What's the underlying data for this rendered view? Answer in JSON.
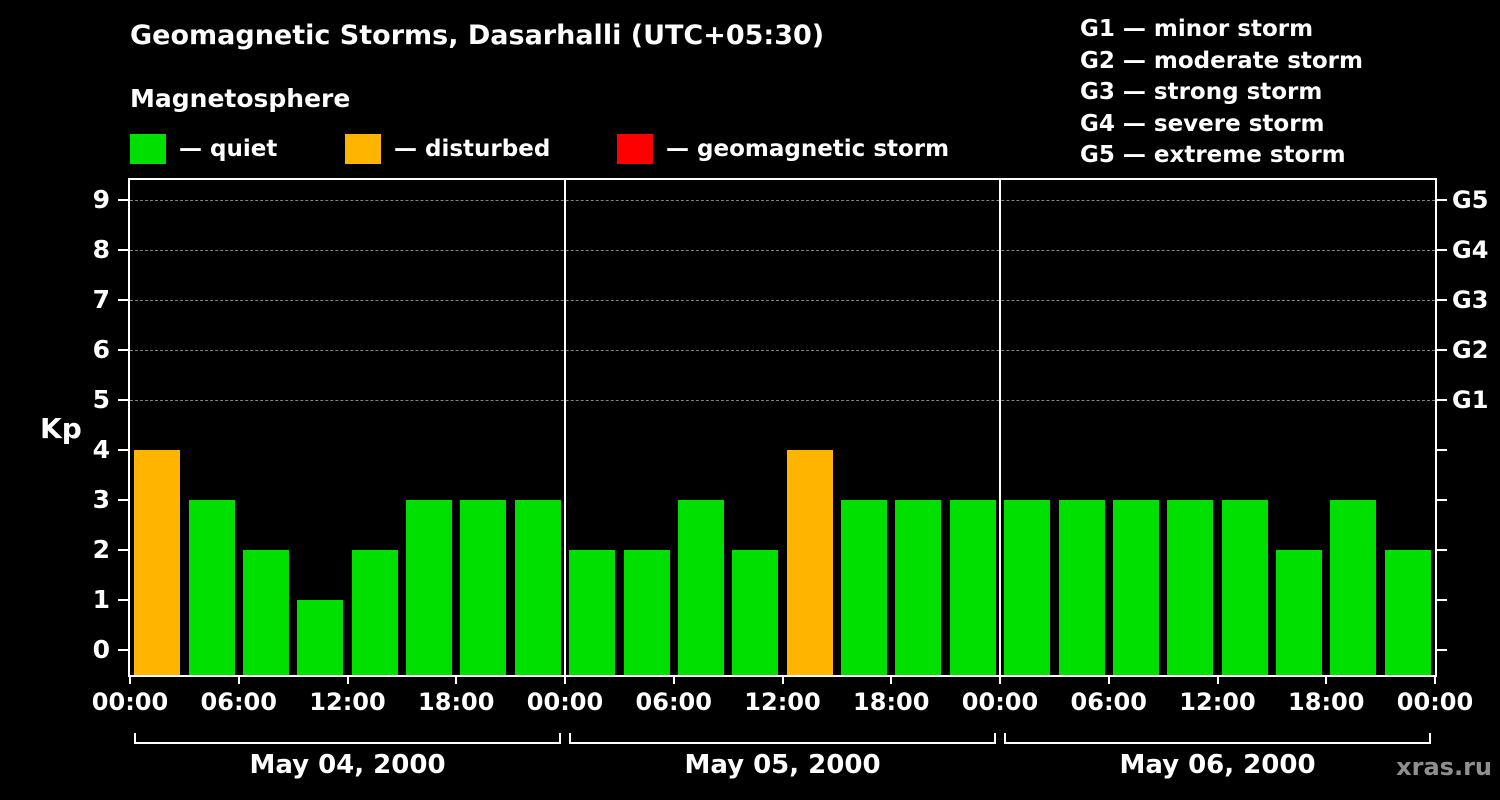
{
  "header": {
    "title": "Geomagnetic Storms, Dasarhalli (UTC+05:30)",
    "subtitle": "Magnetosphere"
  },
  "legend": {
    "items": [
      {
        "label": "— quiet",
        "color": "#00e000"
      },
      {
        "label": "— disturbed",
        "color": "#ffb400"
      },
      {
        "label": "— geomagnetic storm",
        "color": "#ff0000"
      }
    ]
  },
  "storm_scale_legend": {
    "items": [
      "G1 — minor storm",
      "G2 — moderate storm",
      "G3 — strong storm",
      "G4 — severe storm",
      "G5 — extreme storm"
    ]
  },
  "watermark": "xras.ru",
  "chart_data": {
    "type": "bar",
    "ylabel": "Kp",
    "ylim": [
      0,
      9.4
    ],
    "yticks": [
      0,
      1,
      2,
      3,
      4,
      5,
      6,
      7,
      8,
      9
    ],
    "gridlines_kp": [
      5,
      6,
      7,
      8,
      9
    ],
    "right_axis_labels": [
      {
        "label": "G1",
        "kp": 5
      },
      {
        "label": "G2",
        "kp": 6
      },
      {
        "label": "G3",
        "kp": 7
      },
      {
        "label": "G4",
        "kp": 8
      },
      {
        "label": "G5",
        "kp": 9
      }
    ],
    "x_tick_labels": [
      "00:00",
      "06:00",
      "12:00",
      "18:00",
      "00:00",
      "06:00",
      "12:00",
      "18:00",
      "00:00",
      "06:00",
      "12:00",
      "18:00",
      "00:00"
    ],
    "bar_interval_hours": 3,
    "days": [
      {
        "date": "May 04, 2000",
        "values": [
          4,
          3,
          2,
          1,
          2,
          3,
          3,
          3
        ]
      },
      {
        "date": "May 05, 2000",
        "values": [
          2,
          2,
          3,
          2,
          4,
          3,
          3,
          3
        ]
      },
      {
        "date": "May 06, 2000",
        "values": [
          3,
          3,
          3,
          3,
          3,
          2,
          3,
          2
        ]
      }
    ],
    "color_rules": {
      "quiet_max": 3,
      "disturbed_max": 4,
      "quiet": "#00e000",
      "disturbed": "#ffb400",
      "storm": "#ff0000"
    },
    "legend_position": "top",
    "grid": "dashed horizontal at G-levels only"
  }
}
